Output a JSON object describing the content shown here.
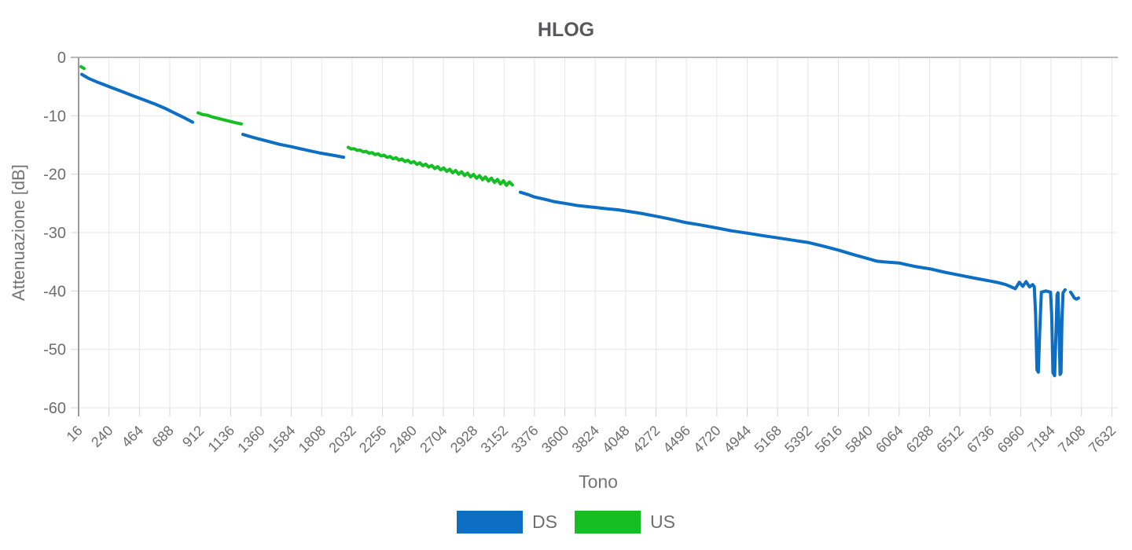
{
  "chart_data": {
    "type": "line",
    "title": "HLOG",
    "xlabel": "Tono",
    "ylabel": "Attenuazione [dB]",
    "legend_position": "bottom",
    "grid": true,
    "xlim": [
      16,
      7676
    ],
    "ylim": [
      -60,
      0
    ],
    "x_ticks": [
      16,
      240,
      464,
      688,
      912,
      1136,
      1360,
      1584,
      1808,
      2032,
      2256,
      2480,
      2704,
      2928,
      3152,
      3376,
      3600,
      3824,
      4048,
      4272,
      4496,
      4720,
      4944,
      5168,
      5392,
      5616,
      5840,
      6064,
      6288,
      6512,
      6736,
      6960,
      7184,
      7408,
      7632
    ],
    "y_ticks": [
      0,
      -10,
      -20,
      -30,
      -40,
      -50,
      -60
    ],
    "colors": {
      "grid": "#e6e6e6",
      "zero_line": "#b8b8b8",
      "axis_line": "#9b9b9b",
      "tick": "#d4d4d4",
      "text": "#6e6e6e",
      "title": "#58585a"
    },
    "series": [
      {
        "name": "DS",
        "color": "#0d6fc4",
        "segments": [
          [
            [
              39,
              -2.9
            ],
            [
              90,
              -3.6
            ],
            [
              150,
              -4.2
            ],
            [
              240,
              -5.0
            ],
            [
              330,
              -5.8
            ],
            [
              420,
              -6.6
            ],
            [
              500,
              -7.3
            ],
            [
              580,
              -8.0
            ],
            [
              660,
              -8.8
            ],
            [
              730,
              -9.6
            ],
            [
              800,
              -10.4
            ],
            [
              856,
              -11.1
            ]
          ],
          [
            [
              1227,
              -13.2
            ],
            [
              1300,
              -13.7
            ],
            [
              1400,
              -14.3
            ],
            [
              1500,
              -14.9
            ],
            [
              1584,
              -15.3
            ],
            [
              1700,
              -15.9
            ],
            [
              1800,
              -16.4
            ],
            [
              1900,
              -16.8
            ],
            [
              1969,
              -17.1
            ]
          ],
          [
            [
              3272,
              -23.1
            ],
            [
              3330,
              -23.5
            ],
            [
              3376,
              -23.9
            ],
            [
              3450,
              -24.3
            ],
            [
              3520,
              -24.7
            ],
            [
              3600,
              -25.0
            ],
            [
              3700,
              -25.4
            ],
            [
              3824,
              -25.7
            ],
            [
              3900,
              -25.9
            ],
            [
              3990,
              -26.1
            ],
            [
              4048,
              -26.3
            ],
            [
              4160,
              -26.7
            ],
            [
              4272,
              -27.2
            ],
            [
              4380,
              -27.7
            ],
            [
              4496,
              -28.3
            ],
            [
              4600,
              -28.7
            ],
            [
              4720,
              -29.2
            ],
            [
              4830,
              -29.7
            ],
            [
              4944,
              -30.1
            ],
            [
              5050,
              -30.5
            ],
            [
              5168,
              -30.9
            ],
            [
              5280,
              -31.3
            ],
            [
              5392,
              -31.7
            ],
            [
              5500,
              -32.3
            ],
            [
              5616,
              -33.0
            ],
            [
              5730,
              -33.8
            ],
            [
              5840,
              -34.5
            ],
            [
              5900,
              -34.9
            ],
            [
              5950,
              -35.0
            ],
            [
              6064,
              -35.2
            ],
            [
              6120,
              -35.5
            ],
            [
              6180,
              -35.8
            ],
            [
              6288,
              -36.2
            ],
            [
              6400,
              -36.8
            ],
            [
              6512,
              -37.3
            ],
            [
              6620,
              -37.8
            ],
            [
              6736,
              -38.3
            ],
            [
              6800,
              -38.6
            ],
            [
              6850,
              -38.9
            ],
            [
              6890,
              -39.3
            ],
            [
              6920,
              -39.6
            ],
            [
              6950,
              -38.5
            ],
            [
              6975,
              -39.2
            ],
            [
              7000,
              -38.4
            ],
            [
              7025,
              -39.3
            ],
            [
              7048,
              -38.9
            ],
            [
              7060,
              -39.3
            ],
            [
              7070,
              -44.0
            ],
            [
              7080,
              -53.5
            ],
            [
              7090,
              -53.9
            ],
            [
              7100,
              -47.0
            ],
            [
              7112,
              -40.2
            ],
            [
              7145,
              -40.0
            ],
            [
              7180,
              -40.2
            ],
            [
              7188,
              -44.0
            ],
            [
              7198,
              -54.0
            ],
            [
              7210,
              -54.5
            ],
            [
              7220,
              -47.0
            ],
            [
              7228,
              -40.6
            ],
            [
              7235,
              -40.3
            ],
            [
              7242,
              -46.0
            ],
            [
              7250,
              -54.3
            ],
            [
              7257,
              -54.0
            ],
            [
              7264,
              -45.0
            ],
            [
              7272,
              -40.3
            ],
            [
              7287,
              -39.8
            ]
          ],
          [
            [
              7328,
              -40.2
            ],
            [
              7342,
              -40.7
            ],
            [
              7355,
              -41.2
            ],
            [
              7370,
              -41.4
            ],
            [
              7386,
              -41.2
            ]
          ]
        ]
      },
      {
        "name": "US",
        "color": "#15bf23",
        "segments": [
          [
            [
              34,
              -1.6
            ],
            [
              56,
              -1.9
            ]
          ],
          [
            [
              897,
              -9.5
            ],
            [
              930,
              -9.8
            ],
            [
              965,
              -9.9
            ],
            [
              1000,
              -10.2
            ],
            [
              1035,
              -10.4
            ],
            [
              1070,
              -10.6
            ],
            [
              1105,
              -10.8
            ],
            [
              1140,
              -11.0
            ],
            [
              1175,
              -11.2
            ],
            [
              1215,
              -11.4
            ]
          ],
          [
            [
              2003,
              -15.4
            ],
            [
              2025,
              -15.69
            ],
            [
              2047,
              -15.65
            ],
            [
              2069,
              -15.93
            ],
            [
              2091,
              -15.87
            ],
            [
              2113,
              -16.17
            ],
            [
              2135,
              -16.09
            ],
            [
              2157,
              -16.41
            ],
            [
              2179,
              -16.31
            ],
            [
              2201,
              -16.65
            ],
            [
              2223,
              -16.52
            ],
            [
              2245,
              -16.89
            ],
            [
              2267,
              -16.74
            ],
            [
              2289,
              -17.13
            ],
            [
              2311,
              -16.96
            ],
            [
              2333,
              -17.37
            ],
            [
              2355,
              -17.18
            ],
            [
              2377,
              -17.61
            ],
            [
              2399,
              -17.4
            ],
            [
              2421,
              -17.84
            ],
            [
              2443,
              -17.62
            ],
            [
              2465,
              -18.08
            ],
            [
              2487,
              -17.84
            ],
            [
              2509,
              -18.32
            ],
            [
              2531,
              -18.06
            ],
            [
              2553,
              -18.56
            ],
            [
              2575,
              -18.28
            ],
            [
              2597,
              -18.8
            ],
            [
              2619,
              -18.5
            ],
            [
              2641,
              -19.04
            ],
            [
              2663,
              -18.71
            ],
            [
              2685,
              -19.28
            ],
            [
              2707,
              -18.93
            ],
            [
              2729,
              -19.52
            ],
            [
              2751,
              -19.15
            ],
            [
              2773,
              -19.76
            ],
            [
              2795,
              -19.37
            ],
            [
              2817,
              -20.0
            ],
            [
              2839,
              -19.59
            ],
            [
              2861,
              -20.23
            ],
            [
              2883,
              -19.81
            ],
            [
              2905,
              -20.47
            ],
            [
              2927,
              -20.03
            ],
            [
              2949,
              -20.71
            ],
            [
              2971,
              -20.25
            ],
            [
              2993,
              -20.95
            ],
            [
              3015,
              -20.47
            ],
            [
              3037,
              -21.19
            ],
            [
              3059,
              -20.68
            ],
            [
              3081,
              -21.43
            ],
            [
              3103,
              -20.9
            ],
            [
              3125,
              -21.67
            ],
            [
              3147,
              -21.12
            ],
            [
              3169,
              -21.91
            ],
            [
              3191,
              -21.34
            ],
            [
              3214,
              -21.85
            ]
          ]
        ]
      }
    ]
  }
}
